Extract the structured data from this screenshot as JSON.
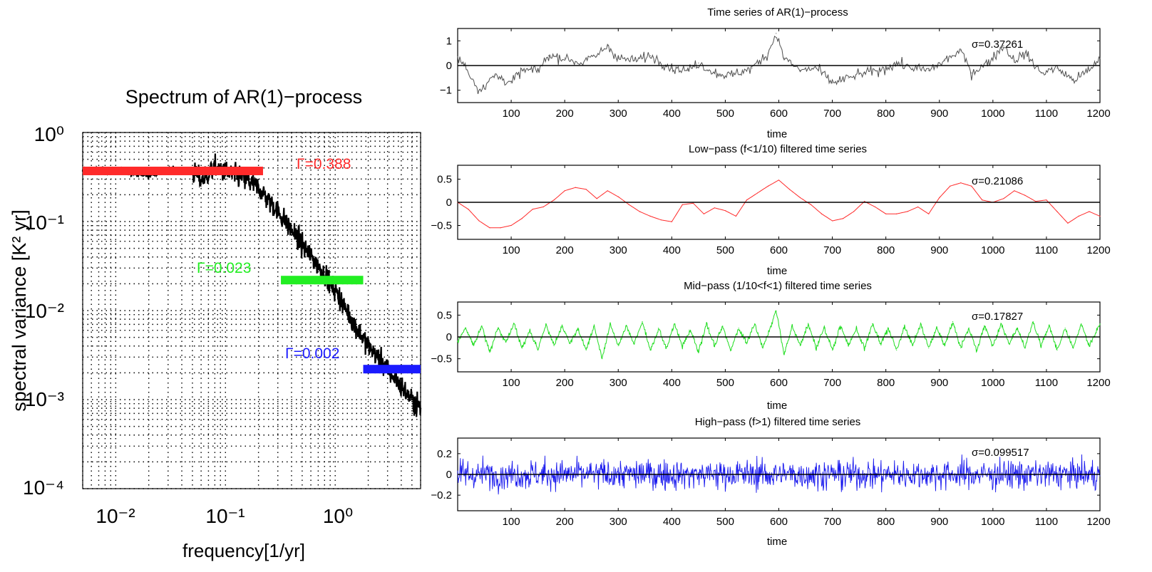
{
  "chart_data": [
    {
      "type": "line",
      "title": "Spectrum of AR(1)−process",
      "xlabel": "frequency[1/yr]",
      "ylabel": "spectral variance [K² yr]",
      "xscale": "log",
      "yscale": "log",
      "xlim": [
        0.005,
        6
      ],
      "ylim": [
        0.0001,
        1
      ],
      "xticks": [
        "10⁻²",
        "10⁻¹",
        "10⁰"
      ],
      "yticks": [
        "10⁰",
        "10⁻¹",
        "10⁻²",
        "10⁻³",
        "10⁻⁴"
      ],
      "grid": "dotted",
      "series": [
        {
          "color": "#000000",
          "x": [
            0.005,
            0.01,
            0.02,
            0.03,
            0.05,
            0.06,
            0.08,
            0.1,
            0.15,
            0.2,
            0.3,
            0.5,
            0.7,
            1.0,
            1.5,
            2.0,
            3.0,
            4.0,
            5.0,
            6.0
          ],
          "y": [
            0.37,
            0.38,
            0.33,
            0.38,
            0.37,
            0.29,
            0.4,
            0.36,
            0.3,
            0.24,
            0.13,
            0.055,
            0.032,
            0.017,
            0.007,
            0.004,
            0.0022,
            0.0014,
            0.001,
            0.0008
          ]
        }
      ],
      "bands": [
        {
          "label": "Γ=0.388",
          "x": [
            0.005,
            0.22
          ],
          "y": 0.37,
          "color": "#ff2a2a"
        },
        {
          "label": "Γ=0.023",
          "x": [
            0.32,
            1.8
          ],
          "y": 0.022,
          "color": "#22ee22"
        },
        {
          "label": "Γ=0.002",
          "x": [
            1.8,
            6
          ],
          "y": 0.0022,
          "color": "#1a1aff"
        }
      ]
    },
    {
      "type": "line",
      "title": "Time series of AR(1)−process",
      "xlabel": "time",
      "xlim": [
        0,
        1200
      ],
      "ylim": [
        -1.5,
        1.5
      ],
      "yticks": [
        "1",
        "0",
        "−1"
      ],
      "xticks": [
        "100",
        "200",
        "300",
        "400",
        "500",
        "600",
        "700",
        "800",
        "900",
        "1000",
        "1100",
        "1200"
      ],
      "annotation": "σ=0.37261",
      "color": "#505050",
      "series": [
        {
          "x": [
            0,
            10,
            40,
            70,
            100,
            120,
            150,
            170,
            200,
            230,
            260,
            280,
            300,
            330,
            360,
            400,
            430,
            450,
            480,
            510,
            550,
            580,
            595,
            610,
            640,
            670,
            700,
            730,
            760,
            790,
            820,
            850,
            880,
            910,
            940,
            960,
            990,
            1020,
            1040,
            1060,
            1090,
            1120,
            1150,
            1180,
            1200
          ],
          "y": [
            0.3,
            0.1,
            -1.0,
            -0.4,
            -0.7,
            -0.2,
            -0.2,
            0.4,
            0.3,
            0.1,
            0.4,
            0.8,
            0.3,
            0.2,
            0.4,
            -0.1,
            -0.2,
            0.1,
            -0.3,
            -0.4,
            -0.1,
            0.5,
            1.3,
            0.3,
            -0.2,
            -0.1,
            -0.7,
            -0.5,
            -0.3,
            -0.2,
            0.1,
            -0.1,
            -0.2,
            0.2,
            0.6,
            -0.3,
            0.1,
            0.8,
            0.2,
            0.5,
            -0.3,
            -0.1,
            -0.6,
            -0.2,
            0.3
          ]
        }
      ]
    },
    {
      "type": "line",
      "title": "Low−pass (f<1/10) filtered time series",
      "xlabel": "time",
      "xlim": [
        0,
        1200
      ],
      "ylim": [
        -0.8,
        0.8
      ],
      "yticks": [
        "0.5",
        "0",
        "−0.5"
      ],
      "xticks": [
        "100",
        "200",
        "300",
        "400",
        "500",
        "600",
        "700",
        "800",
        "900",
        "1000",
        "1100",
        "1200"
      ],
      "annotation": "σ=0.21086",
      "color": "#ff2a2a",
      "series": [
        {
          "x": [
            0,
            20,
            40,
            60,
            80,
            100,
            120,
            140,
            160,
            180,
            200,
            220,
            240,
            260,
            280,
            300,
            320,
            340,
            360,
            380,
            400,
            420,
            440,
            460,
            480,
            500,
            520,
            540,
            560,
            580,
            600,
            620,
            640,
            660,
            680,
            700,
            720,
            740,
            760,
            780,
            800,
            820,
            840,
            860,
            880,
            900,
            920,
            940,
            960,
            980,
            1000,
            1020,
            1040,
            1060,
            1080,
            1100,
            1120,
            1140,
            1160,
            1180,
            1200
          ],
          "y": [
            0,
            -0.15,
            -0.4,
            -0.55,
            -0.55,
            -0.5,
            -0.35,
            -0.15,
            -0.1,
            0.05,
            0.25,
            0.32,
            0.28,
            0.08,
            0.25,
            0.12,
            -0.05,
            -0.2,
            -0.3,
            -0.38,
            -0.42,
            -0.05,
            -0.02,
            -0.25,
            -0.12,
            -0.18,
            -0.3,
            0.05,
            0.2,
            0.35,
            0.48,
            0.28,
            0.1,
            -0.05,
            -0.25,
            -0.4,
            -0.35,
            -0.2,
            0.02,
            -0.1,
            -0.25,
            -0.25,
            -0.2,
            -0.1,
            -0.25,
            0.1,
            0.35,
            0.42,
            0.35,
            0.05,
            0,
            0.08,
            0.25,
            0.15,
            0.02,
            0.05,
            -0.2,
            -0.45,
            -0.3,
            -0.2,
            -0.3
          ]
        }
      ]
    },
    {
      "type": "line",
      "title": "Mid−pass (1/10<f<1) filtered time series",
      "xlabel": "time",
      "xlim": [
        0,
        1200
      ],
      "ylim": [
        -0.8,
        0.8
      ],
      "yticks": [
        "0.5",
        "0",
        "−0.5"
      ],
      "xticks": [
        "100",
        "200",
        "300",
        "400",
        "500",
        "600",
        "700",
        "800",
        "900",
        "1000",
        "1100",
        "1200"
      ],
      "annotation": "σ=0.17827",
      "color": "#22dd22",
      "series": [
        {
          "x": [
            0,
            15,
            30,
            45,
            60,
            75,
            90,
            105,
            120,
            135,
            150,
            165,
            180,
            195,
            210,
            225,
            240,
            255,
            270,
            285,
            300,
            315,
            330,
            345,
            360,
            375,
            390,
            405,
            420,
            435,
            450,
            465,
            480,
            495,
            510,
            525,
            540,
            555,
            570,
            585,
            595,
            610,
            625,
            640,
            655,
            670,
            685,
            700,
            715,
            730,
            745,
            760,
            775,
            790,
            805,
            820,
            835,
            850,
            865,
            880,
            895,
            910,
            925,
            940,
            955,
            970,
            985,
            1000,
            1015,
            1030,
            1045,
            1060,
            1075,
            1090,
            1105,
            1120,
            1135,
            1150,
            1165,
            1180,
            1200
          ],
          "y": [
            -0.1,
            0.2,
            -0.2,
            0.25,
            -0.35,
            0.2,
            -0.1,
            0.3,
            -0.25,
            0.15,
            -0.3,
            0.3,
            -0.2,
            0.25,
            -0.15,
            0.2,
            -0.3,
            0.25,
            -0.5,
            0.3,
            -0.2,
            0.25,
            -0.15,
            0.35,
            -0.3,
            0.2,
            -0.25,
            0.3,
            -0.2,
            0.15,
            -0.35,
            0.3,
            -0.2,
            0.25,
            -0.3,
            0.2,
            -0.15,
            0.3,
            -0.25,
            0.25,
            0.6,
            -0.4,
            0.25,
            -0.2,
            0.3,
            -0.25,
            0.2,
            -0.3,
            0.25,
            -0.2,
            0.2,
            -0.25,
            0.3,
            -0.15,
            0.2,
            -0.3,
            0.25,
            -0.2,
            0.3,
            -0.25,
            0.2,
            -0.2,
            0.35,
            -0.25,
            0.2,
            -0.3,
            0.25,
            -0.2,
            0.3,
            -0.15,
            0.2,
            -0.25,
            0.35,
            -0.2,
            0.25,
            -0.3,
            0.2,
            -0.25,
            0.3,
            -0.2,
            0.3
          ]
        }
      ]
    },
    {
      "type": "line",
      "title": "High−pass (f>1) filtered time series",
      "xlabel": "time",
      "xlim": [
        0,
        1200
      ],
      "ylim": [
        -0.35,
        0.35
      ],
      "yticks": [
        "0.2",
        "0",
        "−0.2"
      ],
      "xticks": [
        "100",
        "200",
        "300",
        "400",
        "500",
        "600",
        "700",
        "800",
        "900",
        "1000",
        "1100",
        "1200"
      ],
      "annotation": "σ=0.099517",
      "color": "#1a1aee",
      "series": [
        {
          "x": [
            0,
            1200
          ],
          "y": [
            0,
            0
          ]
        }
      ]
    }
  ]
}
